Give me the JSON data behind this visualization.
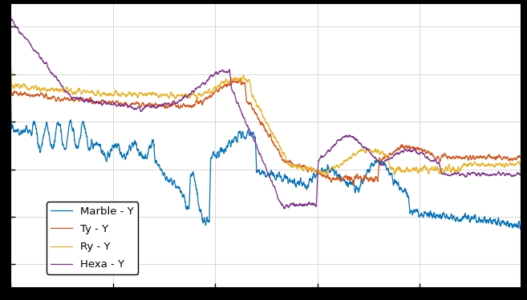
{
  "legend_entries": [
    "Marble - Y",
    "Ty - Y",
    "Ry - Y",
    "Hexa - Y"
  ],
  "colors": [
    "#0072BD",
    "#D95319",
    "#EDB120",
    "#7E2F8E"
  ],
  "background_color": "#ffffff",
  "outer_background": "#000000",
  "grid_color": "#c8c8c8",
  "linewidth": 0.9,
  "figsize": [
    6.57,
    3.75
  ],
  "dpi": 100,
  "ylim": [
    -110,
    10
  ],
  "xlim": [
    0,
    500
  ],
  "n_points": 3000
}
